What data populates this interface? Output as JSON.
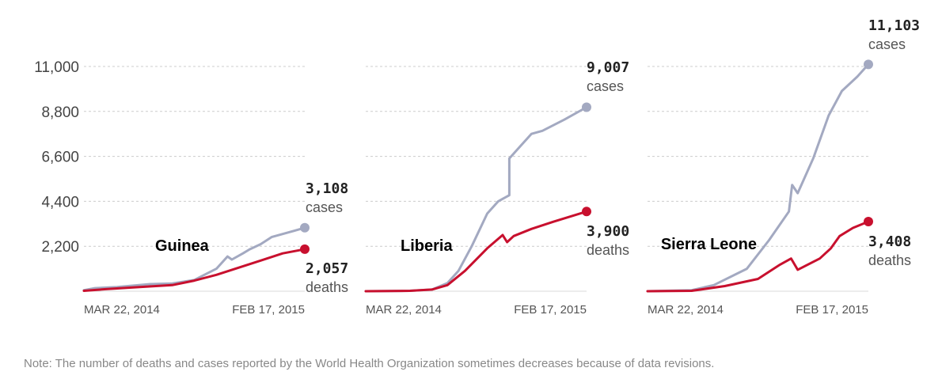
{
  "note": "Note: The number of deaths and cases reported by the World Health Organization sometimes decreases because of data revisions.",
  "colors": {
    "cases": "#a3a9c1",
    "deaths": "#c8102e"
  },
  "chart_data": [
    {
      "type": "line",
      "title": "Guinea",
      "ylim": [
        0,
        11000
      ],
      "yticks": [
        "2,200",
        "4,400",
        "6,600",
        "8,800",
        "11,000"
      ],
      "ytick_values": [
        2200,
        4400,
        6600,
        8800,
        11000
      ],
      "x_start_label": "MAR 22, 2014",
      "x_end_label": "FEB 17, 2015",
      "grid": true,
      "series": [
        {
          "name": "cases",
          "x": [
            0,
            0.05,
            0.15,
            0.3,
            0.4,
            0.5,
            0.6,
            0.65,
            0.67,
            0.72,
            0.75,
            0.8,
            0.85,
            0.9,
            0.95,
            1
          ],
          "values": [
            50,
            150,
            200,
            350,
            380,
            550,
            1100,
            1700,
            1550,
            1850,
            2050,
            2300,
            2650,
            2800,
            2950,
            3108
          ],
          "end_value": "3,108",
          "end_unit": "cases"
        },
        {
          "name": "deaths",
          "x": [
            0,
            0.1,
            0.2,
            0.4,
            0.5,
            0.6,
            0.7,
            0.8,
            0.9,
            1
          ],
          "values": [
            20,
            100,
            170,
            300,
            520,
            800,
            1150,
            1500,
            1850,
            2057
          ],
          "end_value": "2,057",
          "end_unit": "deaths"
        }
      ]
    },
    {
      "type": "line",
      "title": "Liberia",
      "ylim": [
        0,
        11000
      ],
      "x_start_label": "MAR 22, 2014",
      "x_end_label": "FEB 17, 2015",
      "grid": true,
      "series": [
        {
          "name": "cases",
          "x": [
            0,
            0.2,
            0.3,
            0.37,
            0.42,
            0.48,
            0.55,
            0.6,
            0.65,
            0.65,
            0.7,
            0.75,
            0.8,
            0.9,
            1
          ],
          "values": [
            0,
            20,
            80,
            400,
            1000,
            2200,
            3800,
            4400,
            4700,
            6500,
            7100,
            7700,
            7850,
            8400,
            9007
          ],
          "end_value": "9,007",
          "end_unit": "cases"
        },
        {
          "name": "deaths",
          "x": [
            0,
            0.2,
            0.3,
            0.37,
            0.45,
            0.55,
            0.62,
            0.64,
            0.67,
            0.75,
            0.85,
            1
          ],
          "values": [
            0,
            20,
            80,
            300,
            1000,
            2100,
            2750,
            2400,
            2700,
            3050,
            3400,
            3900
          ],
          "end_value": "3,900",
          "end_unit": "deaths"
        }
      ]
    },
    {
      "type": "line",
      "title": "Sierra Leone",
      "ylim": [
        0,
        11000
      ],
      "x_start_label": "MAR 22, 2014",
      "x_end_label": "FEB 17, 2015",
      "grid": true,
      "series": [
        {
          "name": "cases",
          "x": [
            0,
            0.2,
            0.3,
            0.45,
            0.55,
            0.64,
            0.655,
            0.68,
            0.75,
            0.82,
            0.88,
            0.95,
            1
          ],
          "values": [
            0,
            50,
            300,
            1100,
            2500,
            3900,
            5200,
            4800,
            6500,
            8600,
            9800,
            10500,
            11103
          ],
          "end_value": "11,103",
          "end_unit": "cases"
        },
        {
          "name": "deaths",
          "x": [
            0,
            0.2,
            0.35,
            0.5,
            0.6,
            0.65,
            0.68,
            0.78,
            0.83,
            0.87,
            0.93,
            1
          ],
          "values": [
            0,
            20,
            250,
            600,
            1300,
            1600,
            1050,
            1600,
            2100,
            2700,
            3100,
            3408
          ],
          "end_value": "3,408",
          "end_unit": "deaths"
        }
      ]
    }
  ]
}
